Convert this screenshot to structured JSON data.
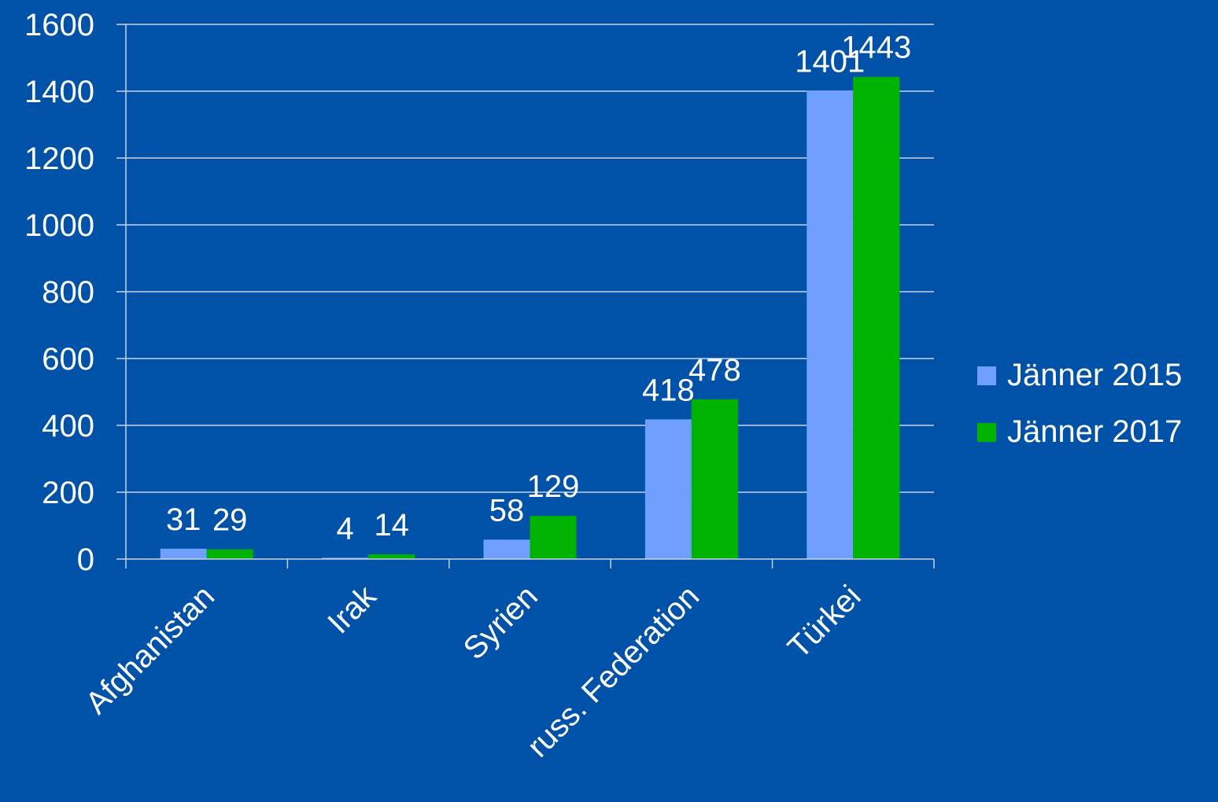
{
  "chart_data": {
    "type": "bar",
    "categories": [
      "Afghanistan",
      "Irak",
      "Syrien",
      "russ. Federation",
      "Türkei"
    ],
    "series": [
      {
        "name": "Jänner 2015",
        "values": [
          31,
          4,
          58,
          418,
          1401
        ],
        "color": "#6FA0FF"
      },
      {
        "name": "Jänner 2017",
        "values": [
          29,
          14,
          129,
          478,
          1443
        ],
        "color": "#00B300"
      }
    ],
    "ylim": [
      0,
      1600
    ],
    "yticks": [
      0,
      200,
      400,
      600,
      800,
      1000,
      1200,
      1400,
      1600
    ],
    "grid": true,
    "legend": "right",
    "data_labels": true,
    "background": "#0051A8",
    "text_color": "#FFFFFF",
    "axis_color": "#C8D2E6"
  }
}
